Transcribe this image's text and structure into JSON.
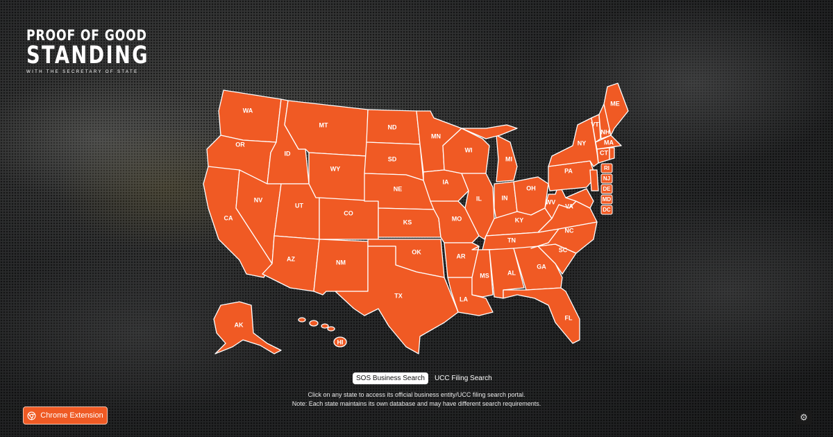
{
  "logo": {
    "line1": "PROOF OF GOOD",
    "line2": "STANDING",
    "line3": "WITH THE SECRETARY OF STATE"
  },
  "map": {
    "fill_color": "#f05a24",
    "stroke_color": "#ffffff",
    "states": [
      "WA",
      "OR",
      "CA",
      "ID",
      "NV",
      "MT",
      "WY",
      "UT",
      "AZ",
      "CO",
      "NM",
      "ND",
      "SD",
      "NE",
      "KS",
      "OK",
      "TX",
      "MN",
      "IA",
      "MO",
      "AR",
      "LA",
      "WI",
      "IL",
      "MI",
      "IN",
      "OH",
      "KY",
      "TN",
      "MS",
      "AL",
      "GA",
      "FL",
      "SC",
      "NC",
      "VA",
      "WV",
      "PA",
      "NY",
      "VT",
      "NH",
      "ME",
      "MA",
      "CT",
      "AK",
      "HI"
    ],
    "small_states": [
      "RI",
      "NJ",
      "DE",
      "MD",
      "DC"
    ]
  },
  "tabs": [
    {
      "label": "SOS Business Search",
      "active": true
    },
    {
      "label": "UCC Filing Search",
      "active": false
    }
  ],
  "instructions": {
    "line1": "Click on any state to access its official business entity/UCC filing search portal.",
    "line2": "Note: Each state maintains its own database and may have different search requirements."
  },
  "chrome_button": {
    "label": "Chrome Extension",
    "icon": "chrome-icon"
  },
  "settings": {
    "icon": "gear-icon"
  }
}
